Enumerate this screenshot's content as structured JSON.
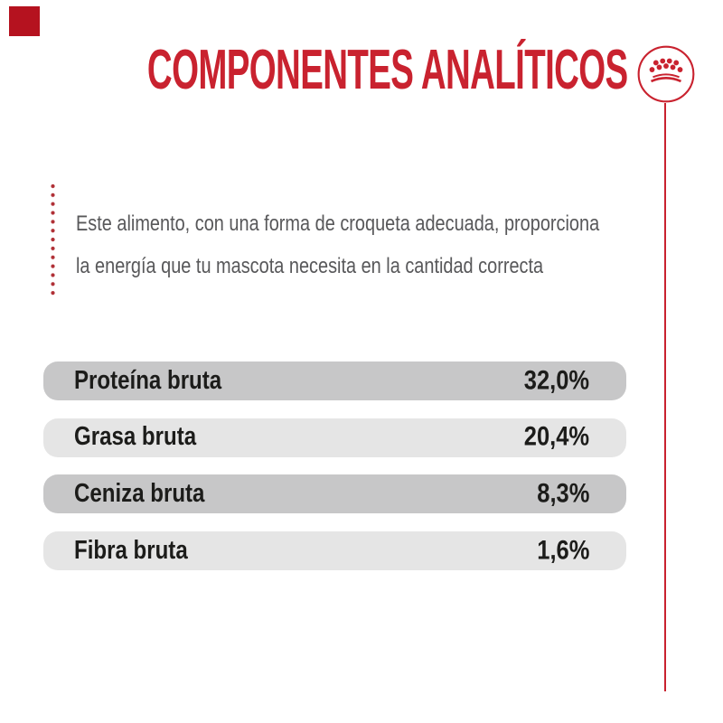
{
  "title": "COMPONENTES ANALÍTICOS",
  "description": {
    "line1": "Este alimento, con una forma de croqueta adecuada, proporciona",
    "line2": "la energía que tu mascota necesita en la cantidad correcta"
  },
  "components": {
    "rows": [
      {
        "label": "Proteína bruta",
        "value": "32,0%"
      },
      {
        "label": "Grasa bruta",
        "value": "20,4%"
      },
      {
        "label": "Ceniza bruta",
        "value": "8,3%"
      },
      {
        "label": "Fibra bruta",
        "value": "1,6%"
      }
    ]
  },
  "branding": {
    "logo_icon": "royal-canin-crown-icon",
    "accent_red": "#c9222f",
    "corner_square_red": "#b5121f",
    "row_dark_gray": "#c7c7c8",
    "row_light_gray": "#e5e5e5",
    "text_black": "#1c1c1a",
    "description_gray": "#58585a"
  }
}
